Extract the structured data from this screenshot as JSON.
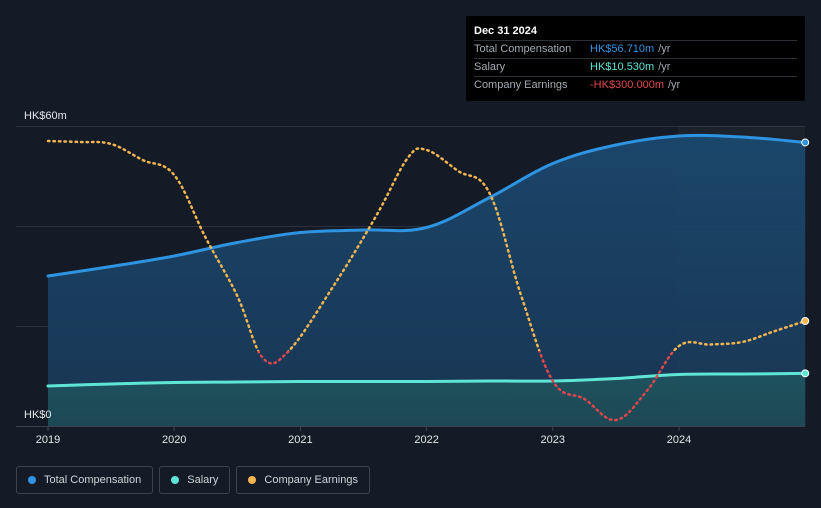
{
  "chart_data": {
    "type": "area",
    "x_ticks": [
      "2019",
      "2020",
      "2021",
      "2022",
      "2023",
      "2024"
    ],
    "y_tick_labels": [
      "HK$0",
      "HK$60m"
    ],
    "ylim": [
      0,
      60
    ],
    "y_unit": "HK$m",
    "grid": true,
    "legend_position": "bottom-left",
    "series": [
      {
        "name": "Total Compensation",
        "color": "#2e93e0",
        "style": "area",
        "x": [
          2019.0,
          2019.5,
          2020.0,
          2020.5,
          2021.0,
          2021.5,
          2022.0,
          2022.5,
          2023.0,
          2023.5,
          2024.0,
          2024.5,
          2025.0
        ],
        "values": [
          30.0,
          31.9,
          34.0,
          36.7,
          38.7,
          39.2,
          39.7,
          45.7,
          52.5,
          56.2,
          58.0,
          57.8,
          56.71
        ]
      },
      {
        "name": "Salary",
        "color": "#5ee5d5",
        "style": "area",
        "x": [
          2019.0,
          2019.5,
          2020.0,
          2020.5,
          2021.0,
          2021.5,
          2022.0,
          2022.5,
          2023.0,
          2023.5,
          2024.0,
          2024.5,
          2025.0
        ],
        "values": [
          8.0,
          8.4,
          8.7,
          8.8,
          8.9,
          8.9,
          8.9,
          9.0,
          9.0,
          9.5,
          10.3,
          10.4,
          10.53
        ]
      },
      {
        "name": "Company Earnings",
        "style": "dotted-line",
        "positive_color": "#f1b551",
        "negative_color": "#e0474c",
        "x": [
          2019.0,
          2019.25,
          2019.5,
          2019.75,
          2020.0,
          2020.25,
          2020.5,
          2020.7,
          2020.9,
          2021.25,
          2021.6,
          2021.85,
          2022.0,
          2022.25,
          2022.5,
          2022.75,
          2023.0,
          2023.25,
          2023.5,
          2023.75,
          2024.0,
          2024.25,
          2024.5,
          2024.75,
          2025.0
        ],
        "values": [
          57,
          56.8,
          56.4,
          53.2,
          50.2,
          37.6,
          26.0,
          13.7,
          14.8,
          27.5,
          42.0,
          53.6,
          55.2,
          51.0,
          46.5,
          26.0,
          9.0,
          5.4,
          1.2,
          7.2,
          16.0,
          16.3,
          16.8,
          18.9,
          21.0
        ]
      }
    ],
    "tooltip": {
      "date": "Dec 31 2024",
      "rows": [
        {
          "label": "Total Compensation",
          "value": "HK$56.710m",
          "unit": "/yr",
          "color": "#2e93e0"
        },
        {
          "label": "Salary",
          "value": "HK$10.530m",
          "unit": "/yr",
          "color": "#5ee5d5"
        },
        {
          "label": "Company Earnings",
          "value": "-HK$300.000m",
          "unit": "/yr",
          "color": "#e0474c"
        }
      ]
    }
  },
  "legend": [
    {
      "label": "Total Compensation",
      "color": "#2e93e0"
    },
    {
      "label": "Salary",
      "color": "#5ee5d5"
    },
    {
      "label": "Company Earnings",
      "color": "#f1b551"
    }
  ]
}
